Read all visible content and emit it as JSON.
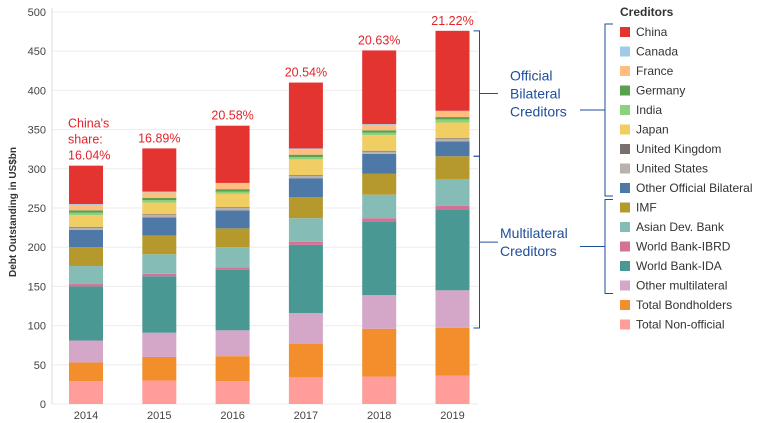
{
  "chart_data": {
    "type": "bar",
    "stacked": true,
    "ylabel": "Debt Outstanding in US$bn",
    "ylim": [
      0,
      500
    ],
    "yticks": [
      0,
      50,
      100,
      150,
      200,
      250,
      300,
      350,
      400,
      450,
      500
    ],
    "categories": [
      "2014",
      "2015",
      "2016",
      "2017",
      "2018",
      "2019"
    ],
    "series": [
      {
        "name": "Total Non-official",
        "color": "#ff9d9a",
        "values": [
          29,
          30,
          29,
          34,
          35,
          36
        ]
      },
      {
        "name": "Total Bondholders",
        "color": "#f28e2b",
        "values": [
          24,
          30,
          32,
          43,
          61,
          61
        ]
      },
      {
        "name": "Other multilateral",
        "color": "#d4a6c8",
        "values": [
          28,
          31,
          33,
          39,
          43,
          48
        ]
      },
      {
        "name": "World Bank-IDA",
        "color": "#499894",
        "values": [
          69,
          72,
          77,
          87,
          94,
          103
        ]
      },
      {
        "name": "World Bank-IBRD",
        "color": "#d37295",
        "values": [
          3,
          3,
          3,
          4,
          4,
          5
        ]
      },
      {
        "name": "Asian Dev. Bank",
        "color": "#86bcb6",
        "values": [
          23,
          25,
          26,
          30,
          30,
          34
        ]
      },
      {
        "name": "IMF",
        "color": "#b6992d",
        "values": [
          24,
          24,
          24,
          27,
          27,
          29
        ]
      },
      {
        "name": "Other Official Bilateral",
        "color": "#4e79a7",
        "values": [
          22,
          23,
          23,
          24,
          25,
          19
        ]
      },
      {
        "name": "United States",
        "color": "#bab0ac",
        "values": [
          3,
          3,
          3,
          3,
          3,
          3
        ]
      },
      {
        "name": "United Kingdom",
        "color": "#79706e",
        "values": [
          1,
          1,
          1,
          1,
          1,
          1
        ]
      },
      {
        "name": "Japan",
        "color": "#f1ce63",
        "values": [
          15,
          15,
          17,
          20,
          20,
          20
        ]
      },
      {
        "name": "India",
        "color": "#8cd17d",
        "values": [
          3,
          3,
          3,
          3,
          3,
          4
        ]
      },
      {
        "name": "Germany",
        "color": "#59a14f",
        "values": [
          3,
          3,
          3,
          3,
          3,
          3
        ]
      },
      {
        "name": "France",
        "color": "#ffbe7d",
        "values": [
          7,
          7,
          7,
          7,
          7,
          7
        ]
      },
      {
        "name": "Canada",
        "color": "#a0cbe8",
        "values": [
          1,
          1,
          1,
          1,
          1,
          1
        ]
      },
      {
        "name": "China",
        "color": "#e3342f",
        "values": [
          49,
          55,
          73,
          84,
          94,
          102
        ]
      }
    ],
    "annotations": [
      "16.04%",
      "16.89%",
      "20.58%",
      "20.54%",
      "20.63%",
      "21.22%"
    ],
    "first_annotation_prefix": [
      "China's",
      "share:"
    ],
    "legend": {
      "title": "Creditors",
      "placement": "right",
      "items": [
        {
          "name": "China",
          "color": "#e3342f"
        },
        {
          "name": "Canada",
          "color": "#a0cbe8"
        },
        {
          "name": "France",
          "color": "#ffbe7d"
        },
        {
          "name": "Germany",
          "color": "#59a14f"
        },
        {
          "name": "India",
          "color": "#8cd17d"
        },
        {
          "name": "Japan",
          "color": "#f1ce63"
        },
        {
          "name": "United Kingdom",
          "color": "#79706e"
        },
        {
          "name": "United States",
          "color": "#bab0ac"
        },
        {
          "name": "Other Official Bilateral",
          "color": "#4e79a7"
        },
        {
          "name": "IMF",
          "color": "#b6992d"
        },
        {
          "name": "Asian Dev. Bank",
          "color": "#86bcb6"
        },
        {
          "name": "World Bank-IBRD",
          "color": "#d37295"
        },
        {
          "name": "World Bank-IDA",
          "color": "#499894"
        },
        {
          "name": "Other multilateral",
          "color": "#d4a6c8"
        },
        {
          "name": "Total Bondholders",
          "color": "#f28e2b"
        },
        {
          "name": "Total Non-official",
          "color": "#ff9d9a"
        }
      ]
    },
    "groups": [
      {
        "lines": [
          "Official",
          "Bilateral",
          "Creditors"
        ],
        "range": [
          "China",
          "Other Official Bilateral"
        ],
        "color": "#1f4e9a"
      },
      {
        "lines": [
          "Multilateral",
          "Creditors"
        ],
        "range": [
          "IMF",
          "Other multilateral"
        ],
        "color": "#1f4e9a"
      }
    ],
    "grid": true
  }
}
